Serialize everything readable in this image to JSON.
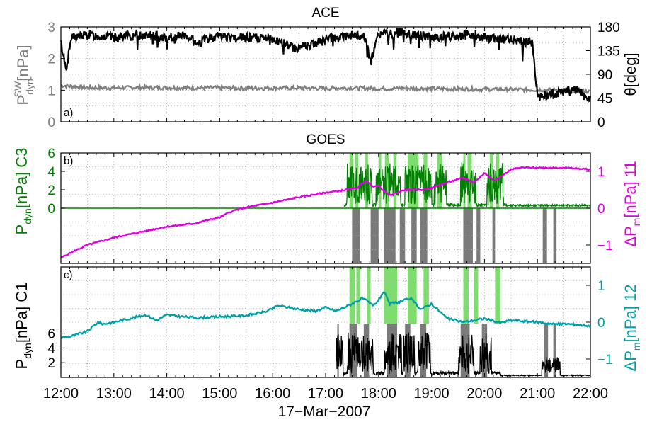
{
  "figure": {
    "x_axis_label": "17−Mar−2007",
    "x_tick_labels": [
      "12:00",
      "13:00",
      "14:00",
      "15:00",
      "16:00",
      "17:00",
      "18:00",
      "19:00",
      "20:00",
      "21:00",
      "22:00"
    ],
    "colors": {
      "black": "#000000",
      "gray": "#808080",
      "green": "#008000",
      "magenta": "#e000e0",
      "teal": "#00a0a8",
      "shade_green": "#7fdc6e",
      "shade_gray": "#7a7a7a"
    }
  },
  "chart_data": [
    {
      "type": "line",
      "panel": "a",
      "title": "ACE",
      "panel_label": "a)",
      "ylabel_left": "P_dyn^SW [nPa]",
      "ylabel_left_parts": {
        "base": "P",
        "sub": "dyn",
        "sup": "SW",
        "rest": "[nPa]"
      },
      "ylabel_right": "θ[deg]",
      "xlim": [
        12,
        22
      ],
      "ylim_left": [
        0,
        3
      ],
      "ylim_right": [
        0,
        180
      ],
      "yticks_left": [
        "0",
        "1",
        "2",
        "3"
      ],
      "yticks_right": [
        "0",
        "45",
        "90",
        "135",
        "180"
      ],
      "grid": true,
      "series": [
        {
          "axis": "left",
          "x": [
            12.0,
            12.5,
            13.0,
            13.5,
            14.0,
            14.5,
            15.0,
            15.5,
            16.0,
            16.5,
            17.0,
            17.5,
            18.0,
            18.5,
            19.0,
            19.5,
            20.0,
            20.5,
            21.0,
            21.5,
            22.0
          ],
          "y": [
            1.15,
            1.08,
            1.07,
            1.09,
            1.08,
            1.07,
            1.08,
            1.06,
            1.07,
            1.07,
            1.06,
            1.07,
            1.05,
            1.06,
            1.05,
            1.04,
            1.03,
            1.02,
            1.01,
            1.0,
            0.95
          ]
        },
        {
          "axis": "right",
          "x": [
            12.0,
            12.1,
            12.2,
            12.5,
            13.0,
            13.3,
            13.6,
            14.0,
            14.3,
            14.6,
            14.85,
            15.0,
            15.3,
            15.6,
            16.0,
            16.2,
            16.4,
            16.8,
            17.0,
            17.2,
            17.5,
            17.75,
            17.85,
            18.0,
            18.3,
            18.5,
            18.7,
            19.0,
            19.3,
            19.6,
            19.8,
            20.0,
            20.3,
            20.6,
            20.9,
            21.0,
            21.2,
            21.5,
            21.75,
            22.0
          ],
          "y": [
            150,
            100,
            160,
            165,
            160,
            162,
            165,
            160,
            163,
            150,
            160,
            164,
            158,
            160,
            155,
            150,
            140,
            148,
            155,
            160,
            165,
            160,
            112,
            165,
            168,
            170,
            165,
            160,
            162,
            164,
            165,
            160,
            158,
            154,
            150,
            52,
            50,
            58,
            60,
            45
          ]
        }
      ]
    },
    {
      "type": "line",
      "panel": "b",
      "title": "GOES",
      "panel_label": "b)",
      "ylabel_left": "P_dyn [nPa] C3",
      "ylabel_left_parts": {
        "base": "P",
        "sub": "dyn",
        "rest": "[nPa] C3"
      },
      "ylabel_right": "ΔP_m [nPa] 11",
      "ylabel_right_parts": {
        "base": "ΔP",
        "sub": "m",
        "rest": "[nPa] 11"
      },
      "xlim": [
        12,
        22
      ],
      "ylim_left": [
        -6,
        6
      ],
      "ylim_right": [
        -1.5,
        1.5
      ],
      "yticks_left": [
        "0",
        "2",
        "4",
        "6"
      ],
      "yticks_right": [
        "−1",
        "0",
        "1"
      ],
      "grid": true,
      "series": [
        {
          "axis": "right",
          "x": [
            12.0,
            12.2,
            12.5,
            13.0,
            13.5,
            14.0,
            14.5,
            15.0,
            15.2,
            15.3,
            15.5,
            16.0,
            16.5,
            17.0,
            17.4,
            17.6,
            17.75,
            17.9,
            18.0,
            18.2,
            18.5,
            18.8,
            19.0,
            19.3,
            19.6,
            19.8,
            20.0,
            20.2,
            20.5,
            20.7,
            21.0,
            21.5,
            22.0
          ],
          "y": [
            -1.35,
            -1.2,
            -1.0,
            -0.8,
            -0.65,
            -0.5,
            -0.42,
            -0.25,
            -0.1,
            -0.05,
            0.02,
            0.15,
            0.3,
            0.42,
            0.5,
            0.55,
            0.75,
            0.6,
            0.6,
            0.35,
            0.5,
            0.5,
            0.55,
            0.7,
            0.82,
            0.7,
            0.95,
            0.75,
            1.05,
            1.1,
            1.1,
            1.1,
            1.05
          ]
        }
      ]
    },
    {
      "type": "line",
      "panel": "c",
      "panel_label": "c)",
      "ylabel_left": "P_dyn [nPa] C1",
      "ylabel_left_parts": {
        "base": "P",
        "sub": "dyn",
        "rest": "[nPa] C1"
      },
      "ylabel_right": "ΔP_m [nPa] 12",
      "ylabel_right_parts": {
        "base": "ΔP",
        "sub": "m",
        "rest": "[nPa] 12"
      },
      "xlim": [
        12,
        22
      ],
      "ylim_left": [
        0,
        15
      ],
      "ylim_right": [
        -1.5,
        1.5
      ],
      "yticks_left": [
        "2",
        "4",
        "6"
      ],
      "yticks_right": [
        "−1",
        "0",
        "1"
      ],
      "grid": true,
      "series": [
        {
          "axis": "right",
          "x": [
            12.0,
            12.2,
            12.5,
            12.7,
            12.8,
            13.0,
            13.3,
            13.6,
            13.8,
            14.0,
            14.3,
            14.6,
            15.0,
            15.5,
            15.9,
            16.1,
            16.5,
            16.8,
            17.0,
            17.2,
            17.5,
            17.7,
            17.9,
            18.0,
            18.1,
            18.2,
            18.4,
            18.6,
            18.8,
            19.0,
            19.3,
            19.6,
            20.0,
            20.3,
            20.5,
            21.0,
            21.3,
            21.6,
            22.0
          ],
          "y": [
            -0.42,
            -0.38,
            -0.25,
            0.0,
            -0.05,
            0.0,
            0.1,
            0.2,
            0.05,
            0.2,
            0.15,
            0.12,
            0.15,
            0.18,
            0.3,
            0.45,
            0.35,
            0.3,
            0.4,
            0.3,
            0.5,
            0.65,
            0.45,
            0.6,
            0.85,
            0.5,
            0.55,
            0.65,
            0.35,
            0.5,
            0.1,
            0.0,
            0.1,
            -0.02,
            0.05,
            0.0,
            -0.05,
            -0.05,
            -0.1
          ]
        }
      ]
    }
  ]
}
